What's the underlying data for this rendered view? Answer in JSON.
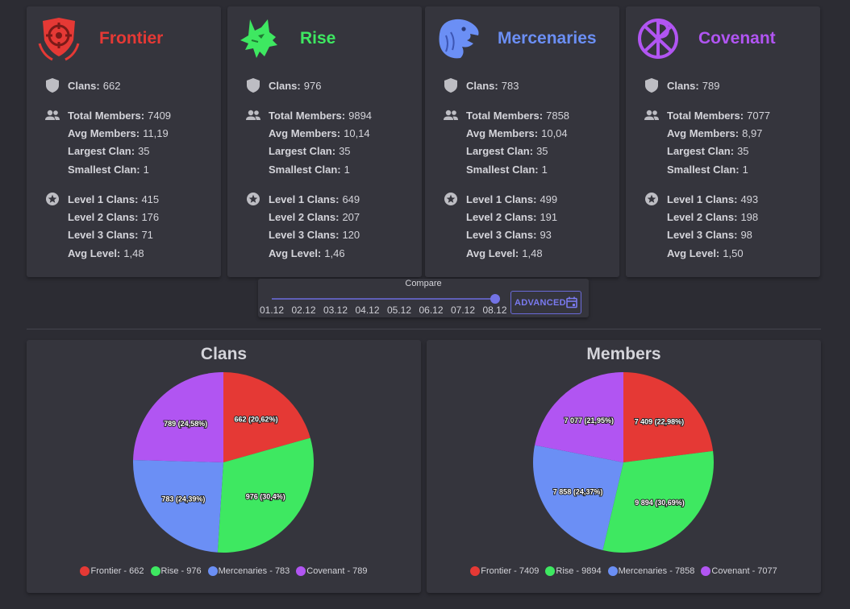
{
  "factions": [
    {
      "name": "Frontier",
      "color": "#e53935",
      "logo": "crosshair-shield-icon",
      "clans_label": "Clans:",
      "clans": "662",
      "total_members_label": "Total Members:",
      "total_members": "7409",
      "avg_members_label": "Avg Members:",
      "avg_members": "11,19",
      "largest_label": "Largest Clan:",
      "largest": "35",
      "smallest_label": "Smallest Clan:",
      "smallest": "1",
      "l1_label": "Level 1 Clans:",
      "l1": "415",
      "l2_label": "Level 2 Clans:",
      "l2": "176",
      "l3_label": "Level 3 Clans:",
      "l3": "71",
      "avg_level_label": "Avg Level:",
      "avg_level": "1,48"
    },
    {
      "name": "Rise",
      "color": "#3ee861",
      "logo": "wolf-head-icon",
      "clans_label": "Clans:",
      "clans": "976",
      "total_members_label": "Total Members:",
      "total_members": "9894",
      "avg_members_label": "Avg Members:",
      "avg_members": "10,14",
      "largest_label": "Largest Clan:",
      "largest": "35",
      "smallest_label": "Smallest Clan:",
      "smallest": "1",
      "l1_label": "Level 1 Clans:",
      "l1": "649",
      "l2_label": "Level 2 Clans:",
      "l2": "207",
      "l3_label": "Level 3 Clans:",
      "l3": "120",
      "avg_level_label": "Avg Level:",
      "avg_level": "1,46"
    },
    {
      "name": "Mercenaries",
      "color": "#6b8ff5",
      "logo": "eagle-head-icon",
      "clans_label": "Clans:",
      "clans": "783",
      "total_members_label": "Total Members:",
      "total_members": "7858",
      "avg_members_label": "Avg Members:",
      "avg_members": "10,04",
      "largest_label": "Largest Clan:",
      "largest": "35",
      "smallest_label": "Smallest Clan:",
      "smallest": "1",
      "l1_label": "Level 1 Clans:",
      "l1": "499",
      "l2_label": "Level 2 Clans:",
      "l2": "191",
      "l3_label": "Level 3 Clans:",
      "l3": "93",
      "avg_level_label": "Avg Level:",
      "avg_level": "1,48"
    },
    {
      "name": "Covenant",
      "color": "#b155f2",
      "logo": "chi-rho-circle-icon",
      "clans_label": "Clans:",
      "clans": "789",
      "total_members_label": "Total Members:",
      "total_members": "7077",
      "avg_members_label": "Avg Members:",
      "avg_members": "8,97",
      "largest_label": "Largest Clan:",
      "largest": "35",
      "smallest_label": "Smallest Clan:",
      "smallest": "1",
      "l1_label": "Level 1 Clans:",
      "l1": "493",
      "l2_label": "Level 2 Clans:",
      "l2": "198",
      "l3_label": "Level 3 Clans:",
      "l3": "98",
      "avg_level_label": "Avg Level:",
      "avg_level": "1,50"
    }
  ],
  "compare": {
    "title": "Compare",
    "dates": [
      "01.12",
      "02.12",
      "03.12",
      "04.12",
      "05.12",
      "06.12",
      "07.12",
      "08.12"
    ],
    "selected": "08.12",
    "advanced_label": "ADVANCED"
  },
  "chart_data": [
    {
      "type": "pie",
      "title": "Clans",
      "categories": [
        "Frontier",
        "Rise",
        "Mercenaries",
        "Covenant"
      ],
      "values": [
        662,
        976,
        783,
        789
      ],
      "slice_labels": [
        "662 (20,62%)",
        "976 (30,4%)",
        "783 (24,39%)",
        "789 (24,58%)"
      ],
      "legend": [
        "Frontier - 662",
        "Rise - 976",
        "Mercenaries - 783",
        "Covenant - 789"
      ],
      "colors": [
        "#e53935",
        "#3ee861",
        "#6b8ff5",
        "#b155f2"
      ],
      "legend_position": "bottom"
    },
    {
      "type": "pie",
      "title": "Members",
      "categories": [
        "Frontier",
        "Rise",
        "Mercenaries",
        "Covenant"
      ],
      "values": [
        7409,
        9894,
        7858,
        7077
      ],
      "slice_labels": [
        "7 409 (22,98%)",
        "9 894 (30,69%)",
        "7 858 (24,37%)",
        "7 077 (21,95%)"
      ],
      "legend": [
        "Frontier - 7409",
        "Rise - 9894",
        "Mercenaries - 7858",
        "Covenant - 7077"
      ],
      "colors": [
        "#e53935",
        "#3ee861",
        "#6b8ff5",
        "#b155f2"
      ],
      "legend_position": "bottom"
    }
  ]
}
